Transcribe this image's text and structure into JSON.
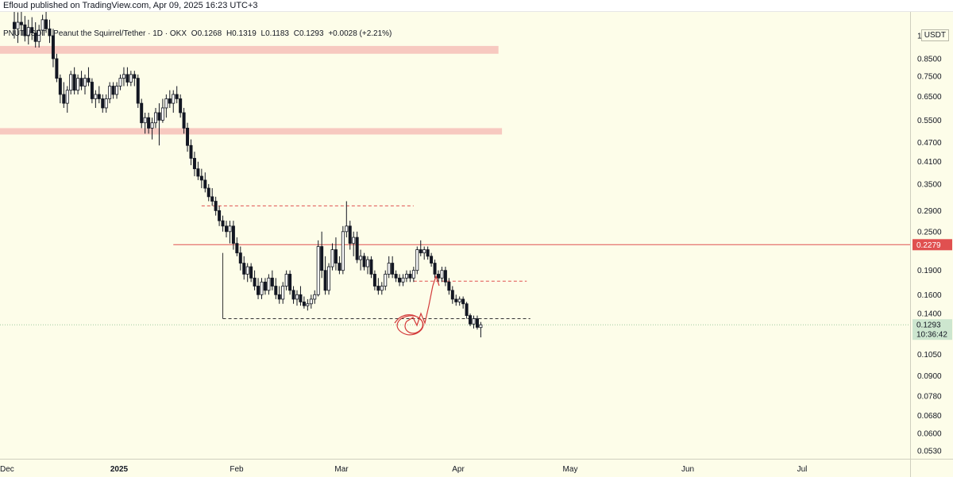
{
  "header": {
    "published": "Efloud published on TradingView.com, Apr 09, 2025 16:23 UTC+3"
  },
  "legend": {
    "symbol": "PNUTUSDT · Peanut the Squirrel/Tether · 1D · OKX",
    "open": "O0.1268",
    "high": "H0.1319",
    "low": "L0.1183",
    "close": "C0.1293",
    "change": "+0.0028 (+2.21%)"
  },
  "price_scale": {
    "currency": "USDT",
    "last_price": "0.1293",
    "countdown": "10:36:42",
    "resistance_label": "0.2279"
  },
  "colors": {
    "background": "#fdfde9",
    "up": "#ffffff",
    "down": "#131722",
    "zone": "#f7c9c0",
    "resistance": "#e05050",
    "last_price_badge": "#cde6cf"
  },
  "chart_data": {
    "type": "candlestick",
    "scale": "log",
    "ylim": [
      0.05,
      1.2
    ],
    "y_ticks": [
      "1.0000",
      "0.8500",
      "0.7500",
      "0.6500",
      "0.5500",
      "0.4700",
      "0.4100",
      "0.3500",
      "0.2900",
      "0.2500",
      "0.1900",
      "0.1600",
      "0.1400",
      "0.1050",
      "0.0900",
      "0.0780",
      "0.0680",
      "0.0600",
      "0.0530"
    ],
    "x_ticks": [
      "Dec",
      "2025",
      "Feb",
      "Mar",
      "Apr",
      "May",
      "Jun",
      "Jul"
    ],
    "start_date": "2024-11-29",
    "candles": [
      [
        1.1,
        1.25,
        0.98,
        1.05
      ],
      [
        1.05,
        1.18,
        0.95,
        1.1
      ],
      [
        1.1,
        1.2,
        1.0,
        1.08
      ],
      [
        1.08,
        1.15,
        0.96,
        1.0
      ],
      [
        1.0,
        1.12,
        0.94,
        1.06
      ],
      [
        1.06,
        1.14,
        0.97,
        1.02
      ],
      [
        1.02,
        1.1,
        0.92,
        0.96
      ],
      [
        0.96,
        1.08,
        0.92,
        1.04
      ],
      [
        1.04,
        1.16,
        1.0,
        1.12
      ],
      [
        1.12,
        1.2,
        1.02,
        1.05
      ],
      [
        1.05,
        1.12,
        0.95,
        1.0
      ],
      [
        1.0,
        1.05,
        0.8,
        0.85
      ],
      [
        0.85,
        0.88,
        0.72,
        0.74
      ],
      [
        0.74,
        0.76,
        0.62,
        0.66
      ],
      [
        0.66,
        0.72,
        0.6,
        0.62
      ],
      [
        0.62,
        0.7,
        0.58,
        0.68
      ],
      [
        0.68,
        0.78,
        0.66,
        0.76
      ],
      [
        0.76,
        0.8,
        0.66,
        0.68
      ],
      [
        0.68,
        0.76,
        0.66,
        0.74
      ],
      [
        0.74,
        0.78,
        0.68,
        0.7
      ],
      [
        0.7,
        0.76,
        0.66,
        0.74
      ],
      [
        0.74,
        0.8,
        0.7,
        0.72
      ],
      [
        0.72,
        0.74,
        0.62,
        0.64
      ],
      [
        0.64,
        0.68,
        0.6,
        0.66
      ],
      [
        0.66,
        0.7,
        0.62,
        0.64
      ],
      [
        0.64,
        0.66,
        0.58,
        0.6
      ],
      [
        0.6,
        0.66,
        0.58,
        0.64
      ],
      [
        0.64,
        0.72,
        0.62,
        0.7
      ],
      [
        0.7,
        0.72,
        0.64,
        0.66
      ],
      [
        0.66,
        0.72,
        0.64,
        0.7
      ],
      [
        0.7,
        0.76,
        0.68,
        0.74
      ],
      [
        0.74,
        0.8,
        0.7,
        0.76
      ],
      [
        0.76,
        0.8,
        0.7,
        0.72
      ],
      [
        0.72,
        0.78,
        0.7,
        0.76
      ],
      [
        0.76,
        0.78,
        0.7,
        0.74
      ],
      [
        0.74,
        0.76,
        0.6,
        0.62
      ],
      [
        0.62,
        0.64,
        0.52,
        0.54
      ],
      [
        0.54,
        0.58,
        0.5,
        0.56
      ],
      [
        0.56,
        0.58,
        0.5,
        0.52
      ],
      [
        0.52,
        0.56,
        0.48,
        0.54
      ],
      [
        0.54,
        0.6,
        0.52,
        0.58
      ],
      [
        0.58,
        0.62,
        0.46,
        0.55
      ],
      [
        0.55,
        0.64,
        0.54,
        0.6
      ],
      [
        0.6,
        0.66,
        0.56,
        0.64
      ],
      [
        0.64,
        0.68,
        0.6,
        0.62
      ],
      [
        0.62,
        0.68,
        0.58,
        0.66
      ],
      [
        0.66,
        0.7,
        0.62,
        0.64
      ],
      [
        0.64,
        0.66,
        0.56,
        0.58
      ],
      [
        0.58,
        0.6,
        0.5,
        0.52
      ],
      [
        0.52,
        0.54,
        0.44,
        0.46
      ],
      [
        0.46,
        0.48,
        0.4,
        0.42
      ],
      [
        0.42,
        0.44,
        0.37,
        0.39
      ],
      [
        0.39,
        0.41,
        0.36,
        0.37
      ],
      [
        0.37,
        0.39,
        0.34,
        0.36
      ],
      [
        0.36,
        0.38,
        0.33,
        0.34
      ],
      [
        0.34,
        0.35,
        0.31,
        0.32
      ],
      [
        0.32,
        0.34,
        0.3,
        0.31
      ],
      [
        0.31,
        0.32,
        0.28,
        0.29
      ],
      [
        0.29,
        0.3,
        0.26,
        0.27
      ],
      [
        0.27,
        0.28,
        0.25,
        0.26
      ],
      [
        0.26,
        0.27,
        0.24,
        0.25
      ],
      [
        0.25,
        0.27,
        0.23,
        0.26
      ],
      [
        0.26,
        0.27,
        0.22,
        0.23
      ],
      [
        0.23,
        0.24,
        0.21,
        0.215
      ],
      [
        0.215,
        0.225,
        0.19,
        0.2
      ],
      [
        0.2,
        0.21,
        0.178,
        0.185
      ],
      [
        0.185,
        0.2,
        0.175,
        0.195
      ],
      [
        0.195,
        0.2,
        0.175,
        0.18
      ],
      [
        0.18,
        0.19,
        0.165,
        0.17
      ],
      [
        0.17,
        0.18,
        0.155,
        0.16
      ],
      [
        0.16,
        0.18,
        0.155,
        0.175
      ],
      [
        0.175,
        0.18,
        0.16,
        0.165
      ],
      [
        0.165,
        0.185,
        0.16,
        0.18
      ],
      [
        0.18,
        0.19,
        0.165,
        0.17
      ],
      [
        0.17,
        0.18,
        0.155,
        0.16
      ],
      [
        0.16,
        0.17,
        0.15,
        0.155
      ],
      [
        0.155,
        0.175,
        0.15,
        0.17
      ],
      [
        0.17,
        0.19,
        0.165,
        0.185
      ],
      [
        0.185,
        0.19,
        0.16,
        0.165
      ],
      [
        0.165,
        0.17,
        0.15,
        0.155
      ],
      [
        0.155,
        0.165,
        0.148,
        0.16
      ],
      [
        0.16,
        0.17,
        0.148,
        0.152
      ],
      [
        0.152,
        0.158,
        0.145,
        0.148
      ],
      [
        0.148,
        0.155,
        0.143,
        0.15
      ],
      [
        0.15,
        0.16,
        0.145,
        0.155
      ],
      [
        0.155,
        0.165,
        0.15,
        0.16
      ],
      [
        0.16,
        0.235,
        0.158,
        0.225
      ],
      [
        0.225,
        0.25,
        0.18,
        0.19
      ],
      [
        0.19,
        0.21,
        0.16,
        0.165
      ],
      [
        0.165,
        0.2,
        0.16,
        0.195
      ],
      [
        0.195,
        0.23,
        0.19,
        0.22
      ],
      [
        0.22,
        0.24,
        0.19,
        0.2
      ],
      [
        0.2,
        0.21,
        0.185,
        0.19
      ],
      [
        0.19,
        0.26,
        0.185,
        0.25
      ],
      [
        0.25,
        0.31,
        0.24,
        0.26
      ],
      [
        0.26,
        0.27,
        0.22,
        0.23
      ],
      [
        0.23,
        0.25,
        0.21,
        0.24
      ],
      [
        0.24,
        0.25,
        0.2,
        0.205
      ],
      [
        0.205,
        0.22,
        0.19,
        0.21
      ],
      [
        0.21,
        0.215,
        0.19,
        0.195
      ],
      [
        0.195,
        0.21,
        0.185,
        0.205
      ],
      [
        0.205,
        0.21,
        0.18,
        0.185
      ],
      [
        0.185,
        0.19,
        0.165,
        0.17
      ],
      [
        0.17,
        0.18,
        0.16,
        0.165
      ],
      [
        0.165,
        0.175,
        0.16,
        0.17
      ],
      [
        0.17,
        0.19,
        0.165,
        0.185
      ],
      [
        0.185,
        0.21,
        0.18,
        0.2
      ],
      [
        0.2,
        0.21,
        0.18,
        0.185
      ],
      [
        0.185,
        0.19,
        0.175,
        0.18
      ],
      [
        0.18,
        0.185,
        0.17,
        0.175
      ],
      [
        0.175,
        0.185,
        0.17,
        0.18
      ],
      [
        0.18,
        0.19,
        0.175,
        0.185
      ],
      [
        0.185,
        0.19,
        0.175,
        0.18
      ],
      [
        0.18,
        0.195,
        0.175,
        0.19
      ],
      [
        0.19,
        0.225,
        0.185,
        0.22
      ],
      [
        0.22,
        0.235,
        0.21,
        0.215
      ],
      [
        0.215,
        0.225,
        0.205,
        0.22
      ],
      [
        0.22,
        0.225,
        0.205,
        0.21
      ],
      [
        0.21,
        0.215,
        0.195,
        0.2
      ],
      [
        0.2,
        0.205,
        0.18,
        0.185
      ],
      [
        0.185,
        0.19,
        0.175,
        0.18
      ],
      [
        0.18,
        0.195,
        0.175,
        0.19
      ],
      [
        0.19,
        0.195,
        0.17,
        0.175
      ],
      [
        0.175,
        0.18,
        0.16,
        0.165
      ],
      [
        0.165,
        0.17,
        0.15,
        0.155
      ],
      [
        0.155,
        0.16,
        0.148,
        0.152
      ],
      [
        0.152,
        0.158,
        0.148,
        0.155
      ],
      [
        0.155,
        0.158,
        0.145,
        0.15
      ],
      [
        0.15,
        0.152,
        0.135,
        0.138
      ],
      [
        0.138,
        0.14,
        0.128,
        0.13
      ],
      [
        0.13,
        0.138,
        0.126,
        0.135
      ],
      [
        0.135,
        0.138,
        0.125,
        0.127
      ],
      [
        0.1268,
        0.1319,
        0.1183,
        0.1293
      ]
    ],
    "zones": [
      {
        "low": 0.88,
        "high": 0.93,
        "start_index": 0,
        "end_index": 137
      },
      {
        "low": 0.497,
        "high": 0.52,
        "start_index": 0,
        "end_index": 138
      }
    ],
    "resistance_line": {
      "price": 0.2279,
      "start_index": 45
    },
    "dashed_lines": [
      {
        "price": 0.3,
        "start_index": 53,
        "end_index": 113,
        "style": "red"
      },
      {
        "price": 0.176,
        "start_index": 113,
        "end_index": 145,
        "style": "red"
      },
      {
        "price": 0.135,
        "start_index": 59,
        "end_index": 146,
        "style": "black"
      }
    ]
  }
}
